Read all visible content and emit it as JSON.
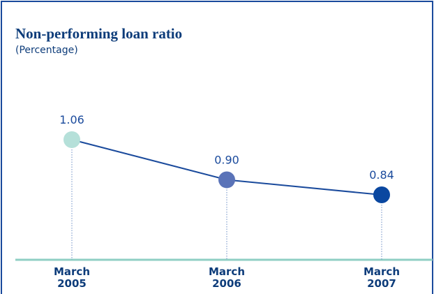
{
  "chart_data": {
    "type": "line",
    "title": "Non-performing loan ratio",
    "subtitle": "(Percentage)",
    "categories": [
      "March 2005",
      "March 2006",
      "March 2007"
    ],
    "series": [
      {
        "color": "#1a4a9c",
        "point_colors": [
          "#b5e0d9",
          "#5a73b8",
          "#0a47a0"
        ],
        "values": [
          1.06,
          0.9,
          0.84
        ],
        "value_labels": [
          "1.06",
          "0.90",
          "0.84"
        ]
      }
    ]
  }
}
